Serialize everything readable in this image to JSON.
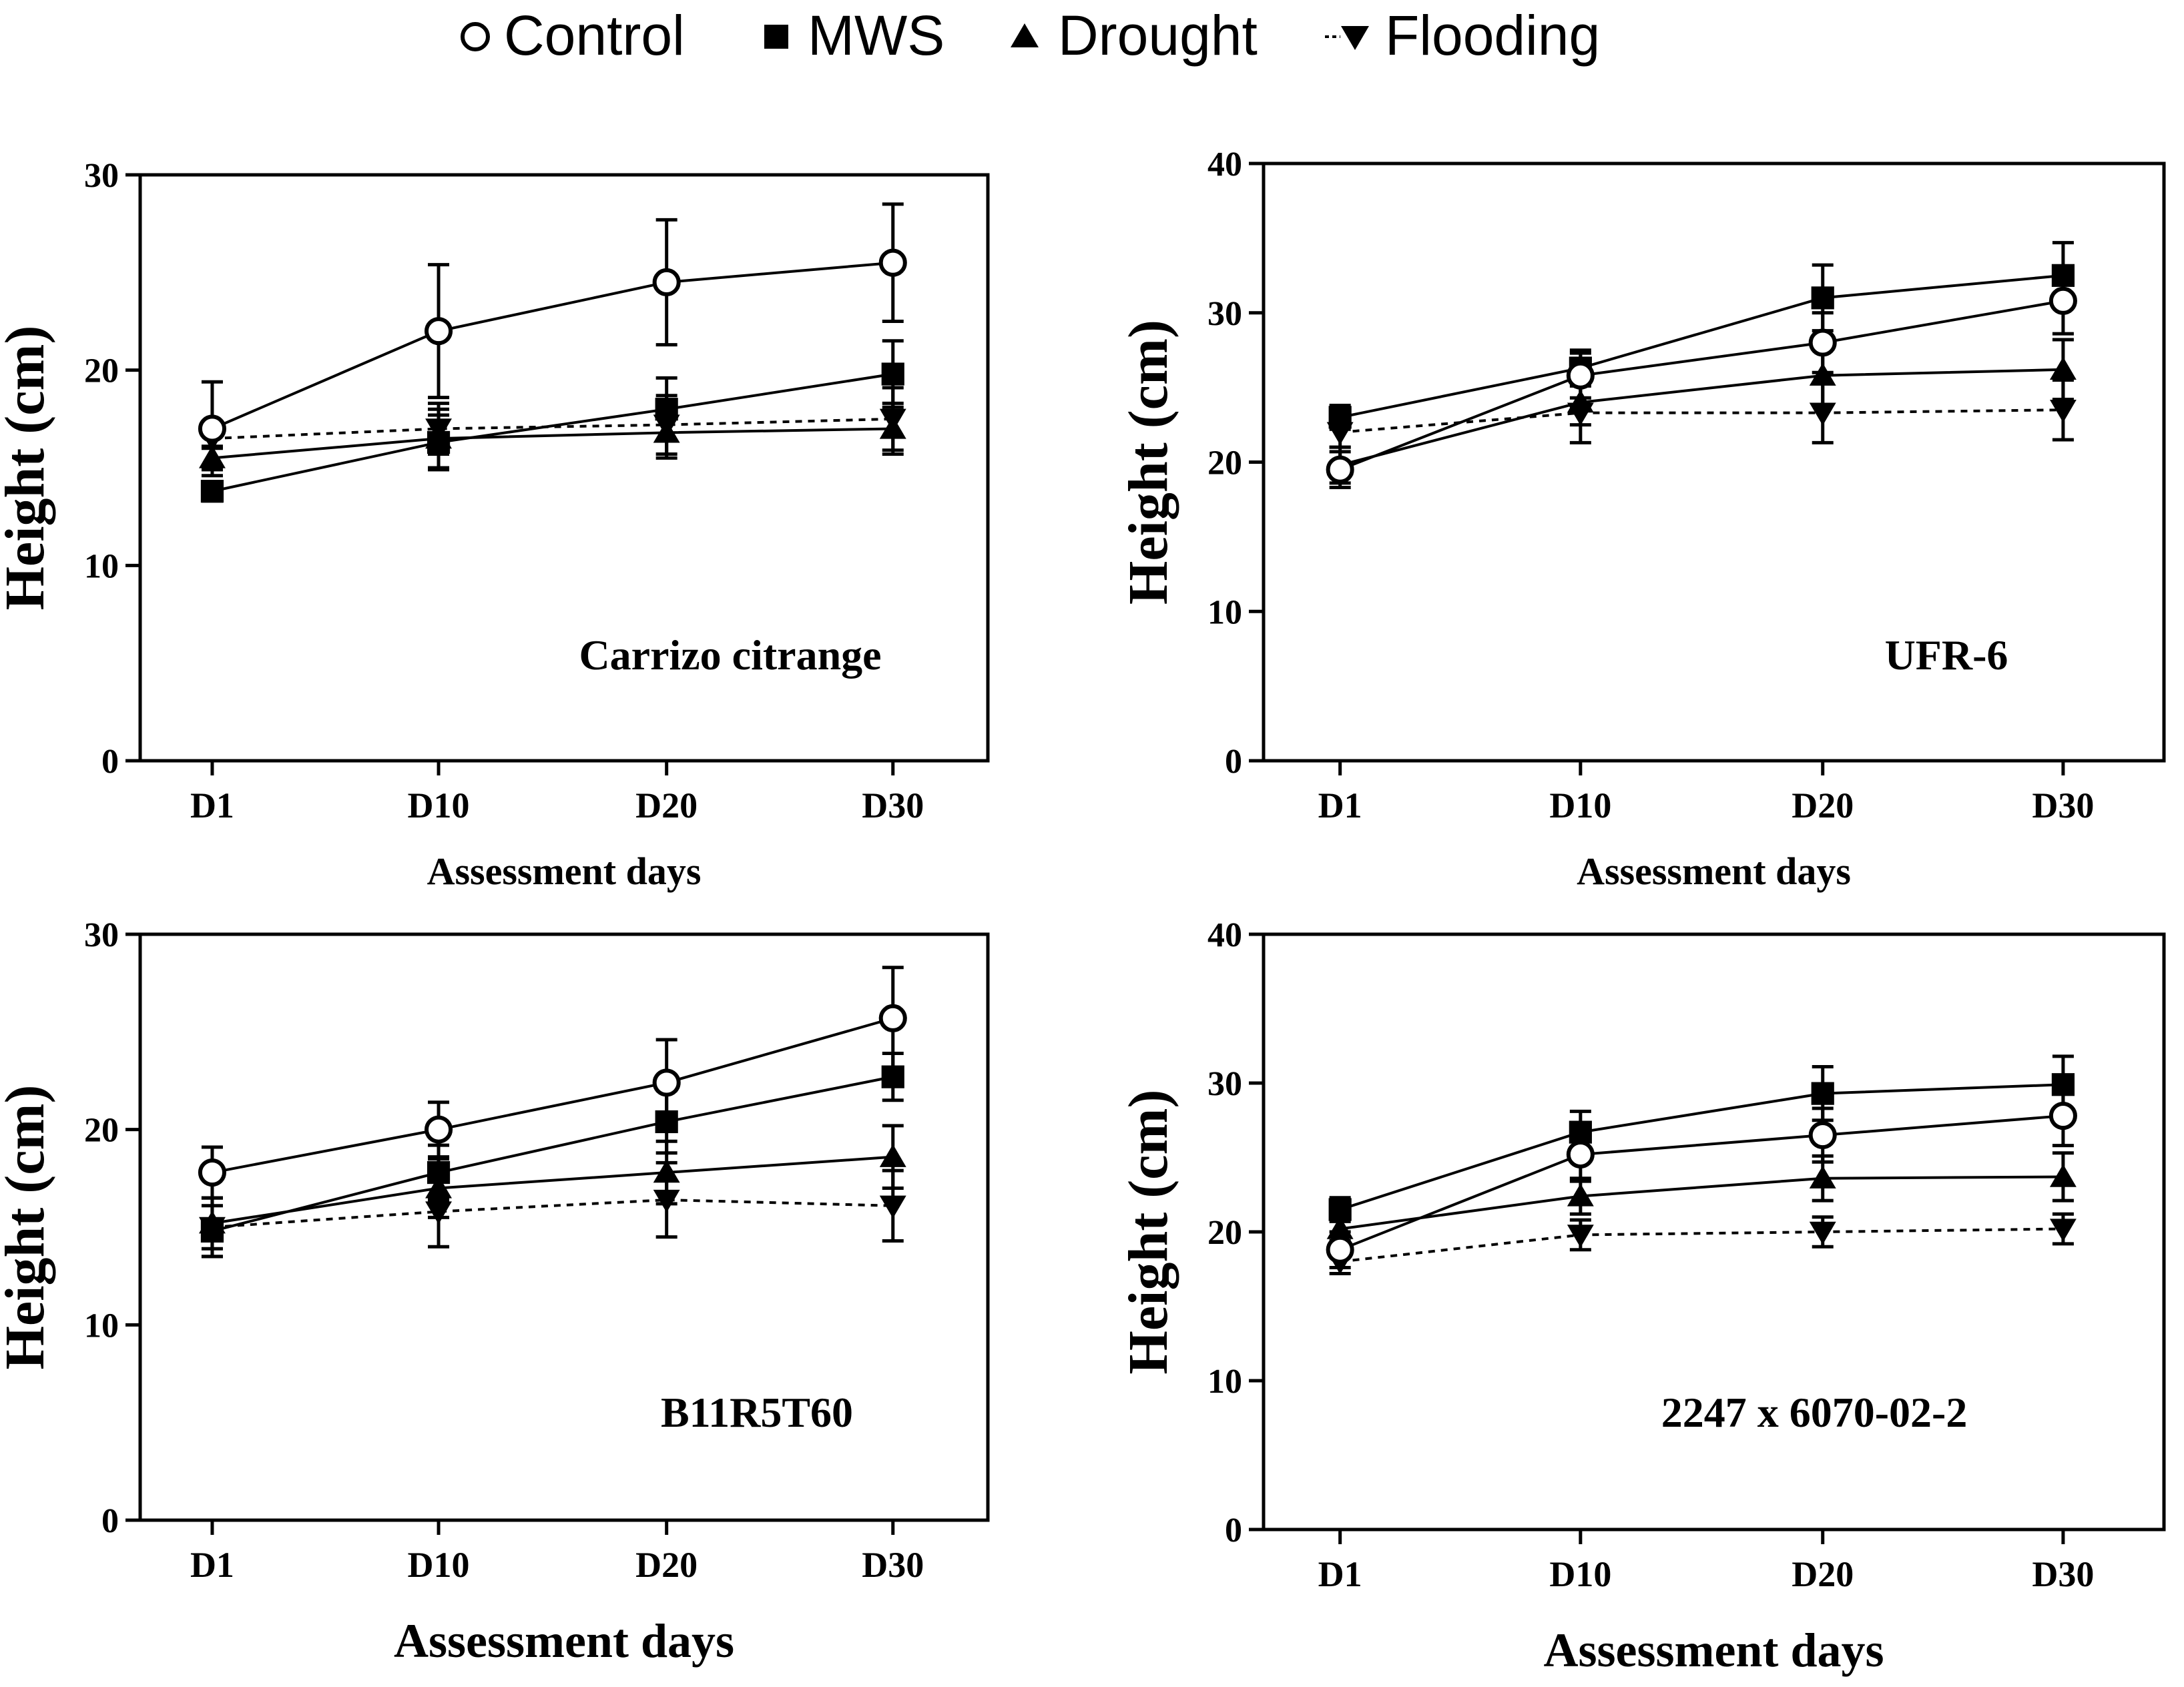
{
  "legend": [
    {
      "name": "Control",
      "marker": "circle-open"
    },
    {
      "name": "MWS",
      "marker": "square-filled"
    },
    {
      "name": "Drought",
      "marker": "triangle-up-filled"
    },
    {
      "name": "Flooding",
      "marker": "triangle-down-filled"
    }
  ],
  "chart_data": [
    {
      "type": "line",
      "panel_label": "Carrizo citrange",
      "categories": [
        "D1",
        "D10",
        "D20",
        "D30"
      ],
      "xlabel": "Assessment days",
      "ylabel": "Height (cm)",
      "ylim": [
        0,
        30
      ],
      "yticks": [
        0,
        10,
        20,
        30
      ],
      "series": [
        {
          "name": "Control",
          "values": [
            17.0,
            22.0,
            24.5,
            25.5
          ],
          "err": [
            2.4,
            3.4,
            3.2,
            3.0
          ]
        },
        {
          "name": "MWS",
          "values": [
            13.8,
            16.3,
            18.0,
            19.8
          ],
          "err": [
            0.5,
            1.4,
            1.6,
            1.7
          ]
        },
        {
          "name": "Drought",
          "values": [
            15.5,
            16.5,
            16.8,
            17.0
          ],
          "err": [
            0.6,
            1.5,
            1.3,
            1.3
          ]
        },
        {
          "name": "Flooding",
          "values": [
            16.5,
            17.0,
            17.2,
            17.5
          ],
          "err": [
            0.5,
            1.3,
            1.5,
            1.6
          ]
        }
      ]
    },
    {
      "type": "line",
      "panel_label": "UFR-6",
      "categories": [
        "D1",
        "D10",
        "D20",
        "D30"
      ],
      "xlabel": "Assessment days",
      "ylabel": "Height (cm)",
      "ylim": [
        0,
        40
      ],
      "yticks": [
        0,
        10,
        20,
        30,
        40
      ],
      "series": [
        {
          "name": "Control",
          "values": [
            19.5,
            25.8,
            28.0,
            30.8
          ],
          "err": [
            1.2,
            1.5,
            2.0,
            2.2
          ]
        },
        {
          "name": "MWS",
          "values": [
            23.0,
            26.3,
            31.0,
            32.5
          ],
          "err": [
            0.8,
            1.2,
            2.2,
            2.2
          ]
        },
        {
          "name": "Drought",
          "values": [
            19.8,
            24.0,
            25.8,
            26.2
          ],
          "err": [
            1.2,
            1.5,
            2.0,
            2.0
          ]
        },
        {
          "name": "Flooding",
          "values": [
            22.0,
            23.3,
            23.3,
            23.5
          ],
          "err": [
            1.0,
            2.0,
            2.0,
            2.0
          ]
        }
      ]
    },
    {
      "type": "line",
      "panel_label": "B11R5T60",
      "categories": [
        "D1",
        "D10",
        "D20",
        "D30"
      ],
      "xlabel": "Assessment days",
      "ylabel": "Height (cm)",
      "ylim": [
        0,
        30
      ],
      "yticks": [
        0,
        10,
        20,
        30
      ],
      "series": [
        {
          "name": "Control",
          "values": [
            17.8,
            20.0,
            22.4,
            25.7
          ],
          "err": [
            1.3,
            1.4,
            2.2,
            2.6
          ]
        },
        {
          "name": "MWS",
          "values": [
            14.8,
            17.8,
            20.4,
            22.7
          ],
          "err": [
            1.3,
            1.4,
            1.6,
            1.2
          ]
        },
        {
          "name": "Drought",
          "values": [
            15.2,
            17.0,
            17.8,
            18.6
          ],
          "err": [
            1.3,
            1.5,
            1.6,
            1.6
          ]
        },
        {
          "name": "Flooding",
          "values": [
            15.0,
            15.8,
            16.4,
            16.1
          ],
          "err": [
            1.5,
            1.8,
            1.9,
            1.8
          ]
        }
      ]
    },
    {
      "type": "line",
      "panel_label": "2247 x 6070-02-2",
      "categories": [
        "D1",
        "D10",
        "D20",
        "D30"
      ],
      "xlabel": "Assessment days",
      "ylabel": "Height (cm)",
      "ylim": [
        0,
        40
      ],
      "yticks": [
        0,
        10,
        20,
        30,
        40
      ],
      "series": [
        {
          "name": "Control",
          "values": [
            18.8,
            25.2,
            26.5,
            27.8
          ],
          "err": [
            1.2,
            1.8,
            1.8,
            2.0
          ]
        },
        {
          "name": "MWS",
          "values": [
            21.5,
            26.7,
            29.3,
            29.9
          ],
          "err": [
            0.8,
            1.4,
            1.8,
            1.9
          ]
        },
        {
          "name": "Drought",
          "values": [
            20.2,
            22.4,
            23.6,
            23.7
          ],
          "err": [
            0.8,
            1.2,
            1.5,
            1.6
          ]
        },
        {
          "name": "Flooding",
          "values": [
            18.0,
            19.8,
            20.0,
            20.2
          ],
          "err": [
            0.8,
            1.0,
            1.0,
            1.0
          ]
        }
      ]
    }
  ]
}
